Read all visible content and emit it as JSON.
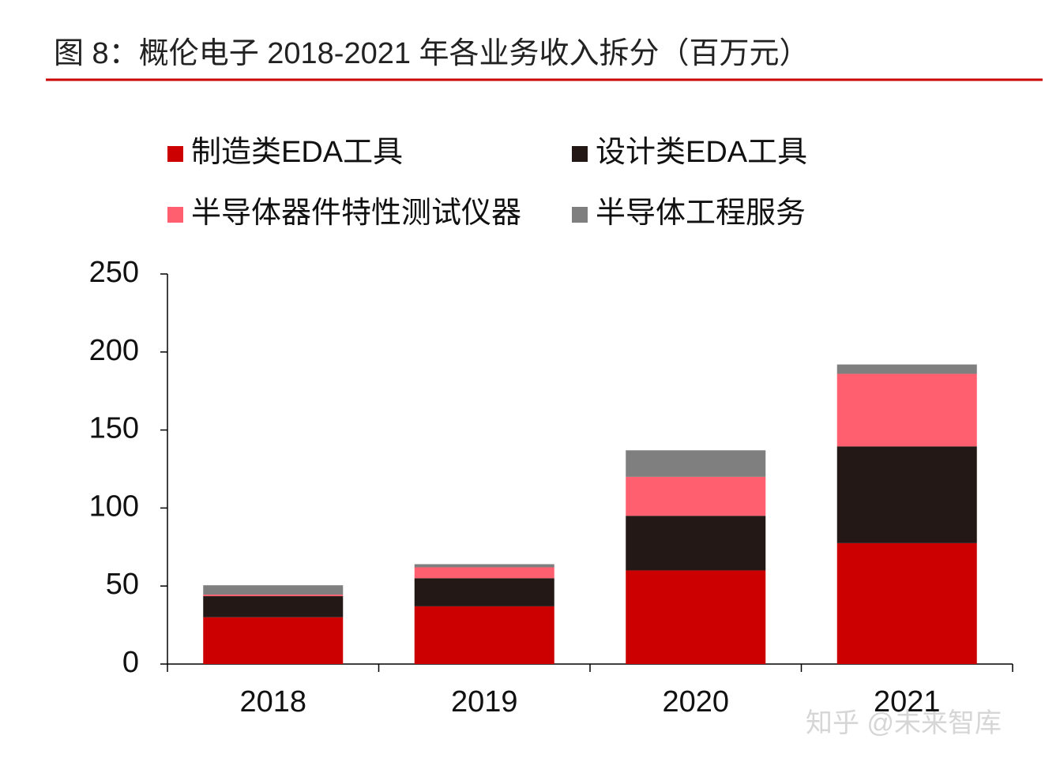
{
  "chart_data": {
    "type": "stacked_bar",
    "title": "图 8：概伦电子 2018-2021 年各业务收入拆分（百万元）",
    "categories": [
      "2018",
      "2019",
      "2020",
      "2021"
    ],
    "series": [
      {
        "name": "制造类EDA工具",
        "color": "#cc0000",
        "values": [
          30,
          37,
          60,
          77.5
        ]
      },
      {
        "name": "设计类EDA工具",
        "color": "#231815",
        "values": [
          13.5,
          18,
          35,
          62
        ]
      },
      {
        "name": "半导体器件特性测试仪器",
        "color": "#ff5f6e",
        "values": [
          1,
          7,
          25,
          46.5
        ]
      },
      {
        "name": "半导体工程服务",
        "color": "#7f7f7f",
        "values": [
          6,
          2,
          17,
          6
        ]
      }
    ],
    "ylim": [
      0,
      250
    ],
    "yticks": [
      0,
      50,
      100,
      150,
      200,
      250
    ],
    "watermark": "知乎 @未来智库"
  }
}
